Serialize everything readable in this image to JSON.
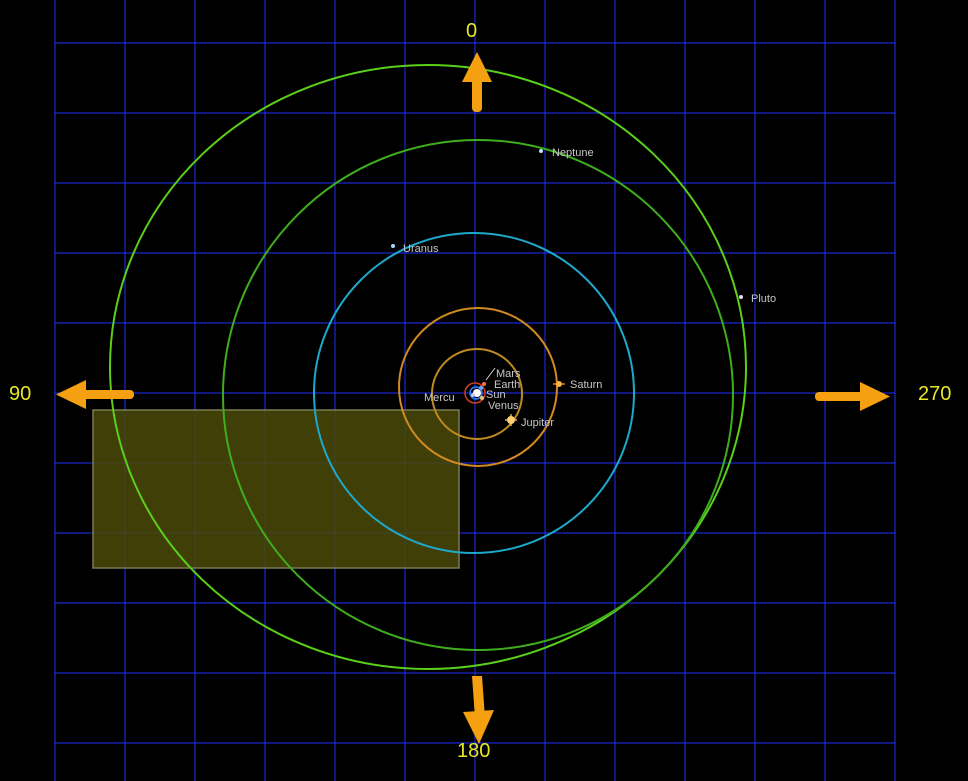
{
  "view": {
    "background_color": "#000000",
    "grid_color": "#2030ff",
    "selection_box_color": "#4a4a08",
    "direction_arrow_color": "#f4a010",
    "direction_label_color": "#e8e826"
  },
  "directions": {
    "top": "0",
    "left": "90",
    "right": "270",
    "bottom": "180"
  },
  "bodies": [
    {
      "name": "Sun",
      "color": "#ffffff"
    },
    {
      "name": "Mercury",
      "label": "Mercu",
      "color": "#cccccc"
    },
    {
      "name": "Venus",
      "label": "Venus",
      "color": "#e8c070"
    },
    {
      "name": "Earth",
      "label": "Earth",
      "color": "#66aaff"
    },
    {
      "name": "Mars",
      "label": "Mars",
      "color": "#ff7040"
    },
    {
      "name": "Jupiter",
      "label": "Jupiter",
      "color": "#f0a030"
    },
    {
      "name": "Saturn",
      "label": "Saturn",
      "color": "#f0a030"
    },
    {
      "name": "Uranus",
      "label": "Uranus",
      "color": "#30b0d8"
    },
    {
      "name": "Neptune",
      "label": "Neptune",
      "color": "#2e9a30"
    },
    {
      "name": "Pluto",
      "label": "Pluto",
      "color": "#60e020"
    }
  ],
  "sun_label": "Sun"
}
